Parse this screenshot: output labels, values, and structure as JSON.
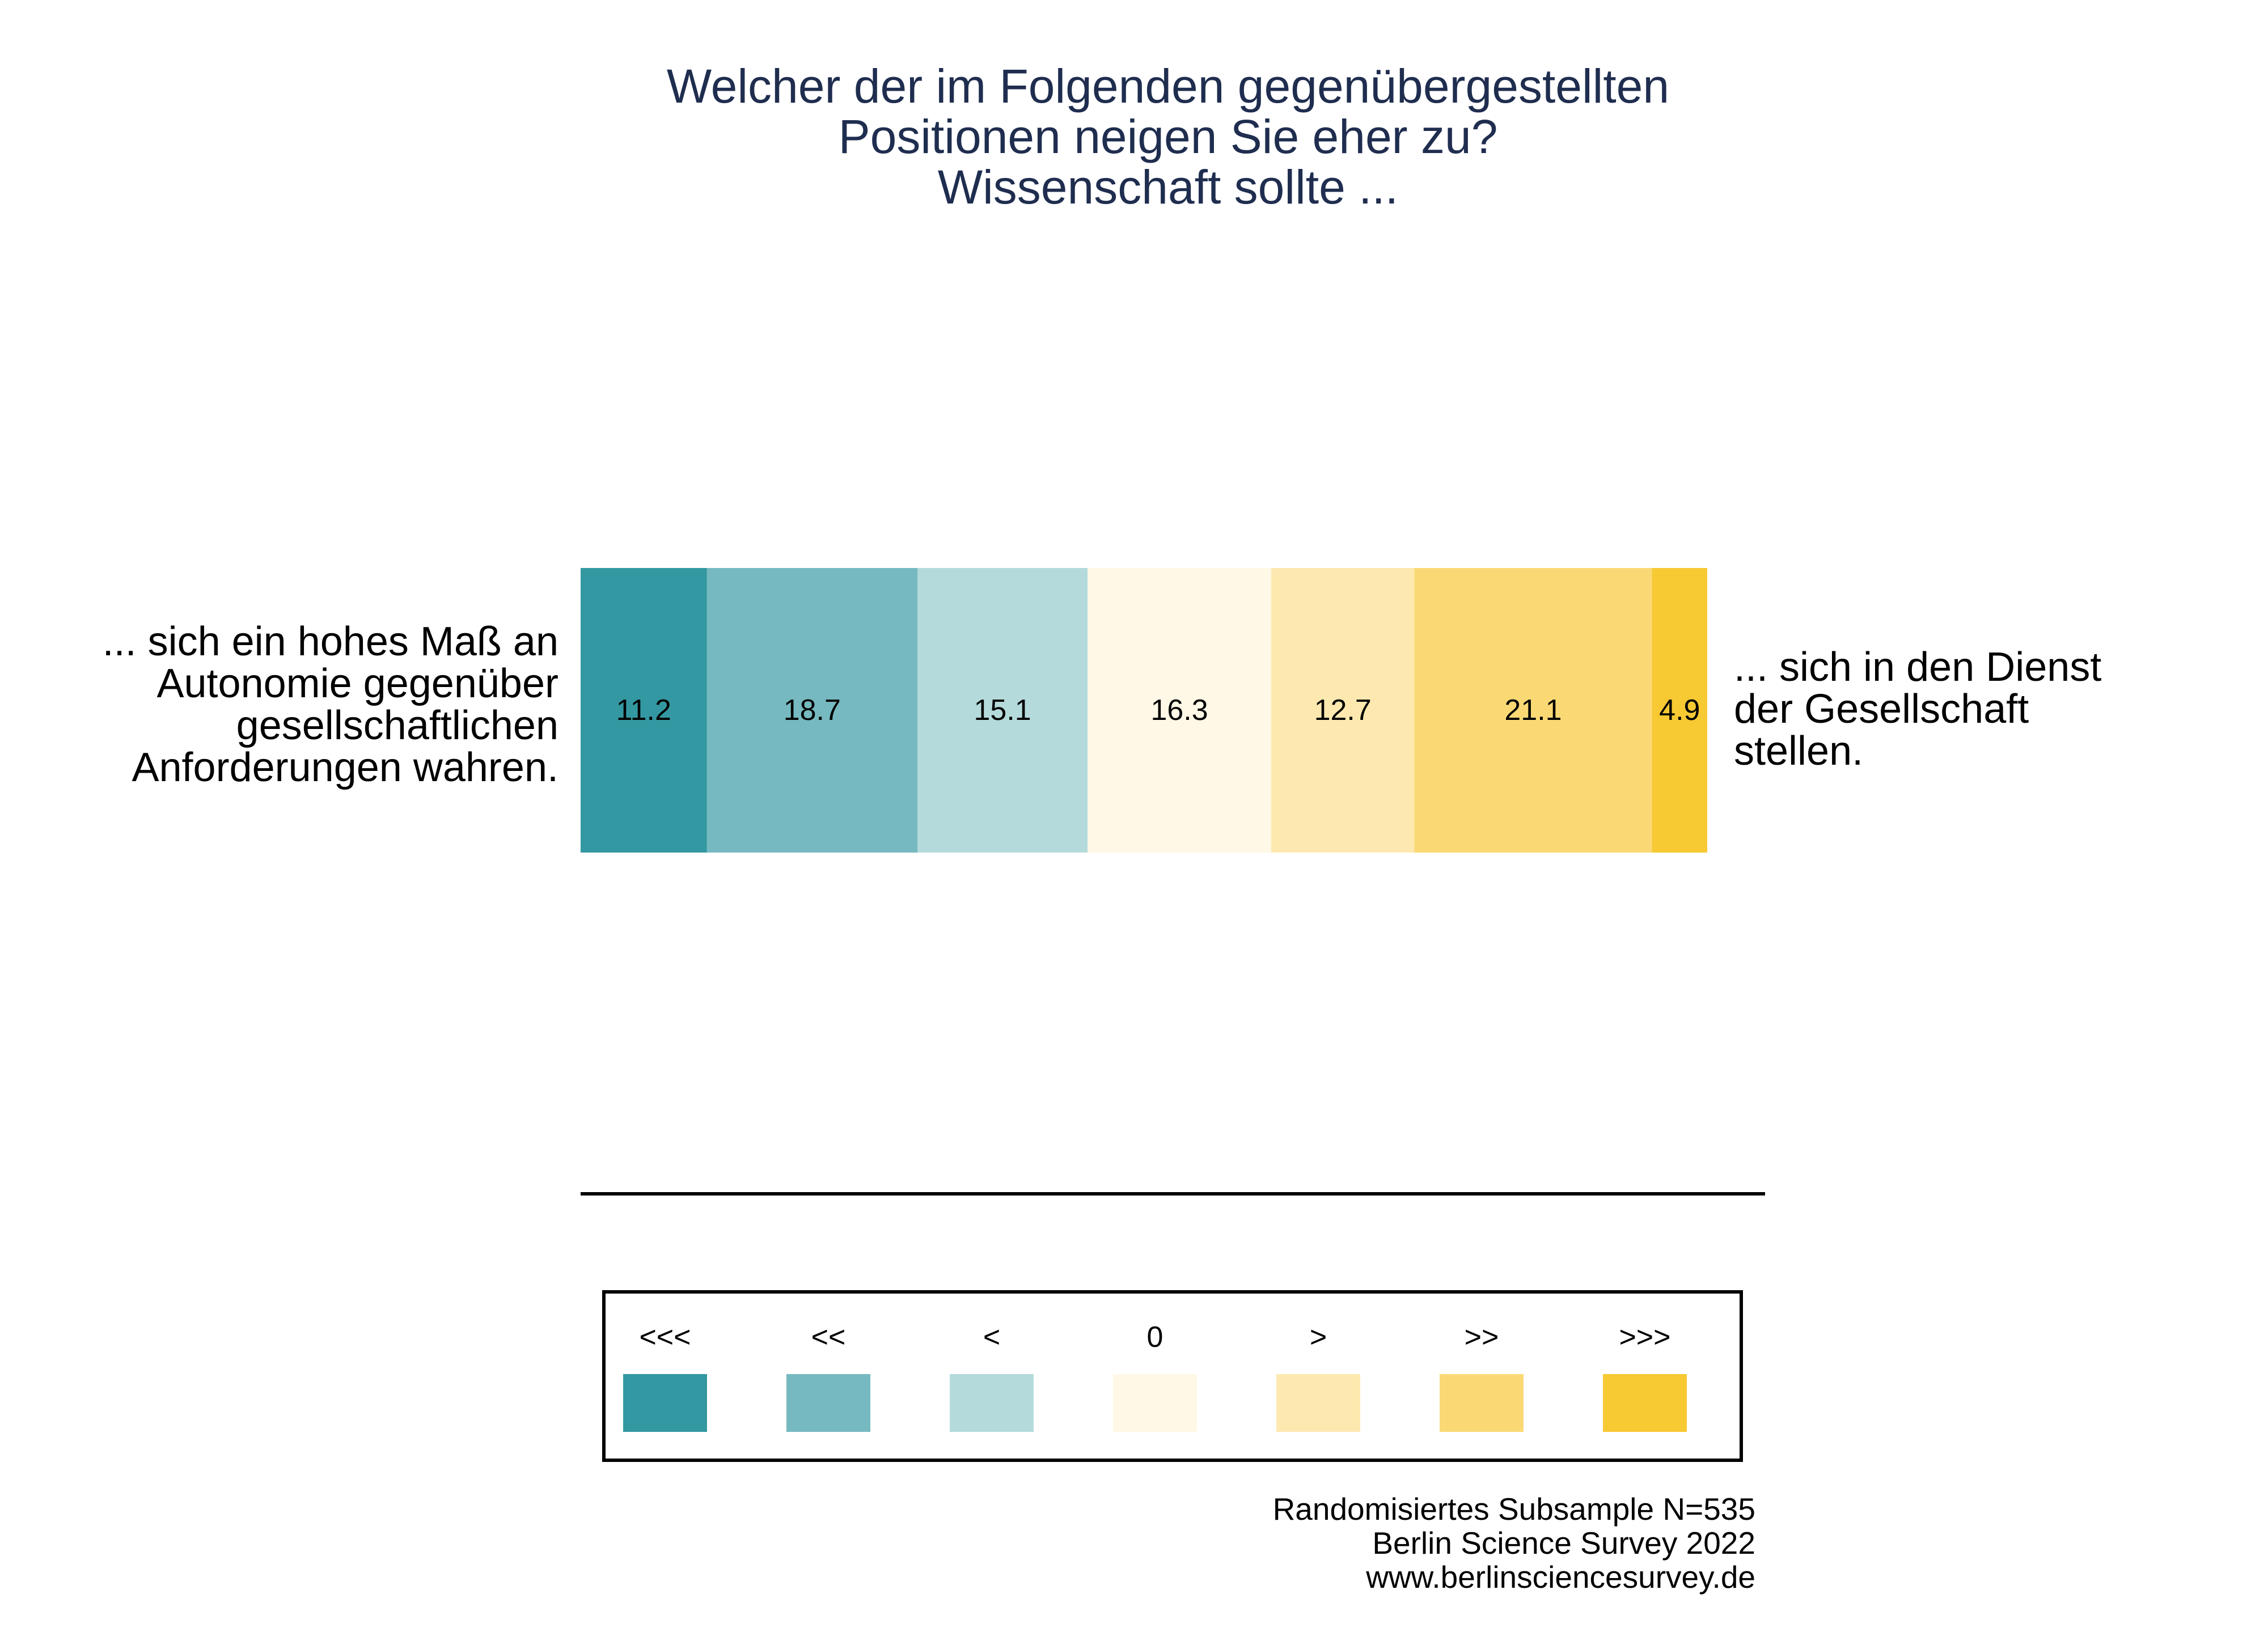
{
  "chart_data": {
    "type": "bar",
    "orientation": "horizontal-stacked",
    "title": [
      "Welcher der im Folgenden gegenübergestellten",
      "Positionen neigen Sie eher zu?",
      "Wissenschaft sollte ..."
    ],
    "left_statement": [
      "... sich ein hohes Maß an",
      "Autonomie gegenüber",
      "gesellschaftlichen",
      "Anforderungen wahren."
    ],
    "right_statement": [
      "... sich in den Dienst",
      "der Gesellschaft",
      "stellen."
    ],
    "categories": [
      "<<<",
      "<<",
      "<",
      "0",
      ">",
      ">>",
      ">>>"
    ],
    "values": [
      11.2,
      18.7,
      15.1,
      16.3,
      12.7,
      21.1,
      4.9
    ],
    "value_labels": [
      "11.2",
      "18.7",
      "15.1",
      "16.3",
      "12.7",
      "21.1",
      "4.9"
    ],
    "colors": [
      "#3398a1",
      "#76b9c0",
      "#b5dadc",
      "#fff8e6",
      "#fde9b0",
      "#fad975",
      "#f7c933"
    ],
    "xlim": [
      0,
      100
    ],
    "legend_position": "bottom",
    "footer": [
      "Randomisiertes Subsample N=535",
      "Berlin Science Survey 2022",
      "www.berlinsciencesurvey.de"
    ]
  }
}
